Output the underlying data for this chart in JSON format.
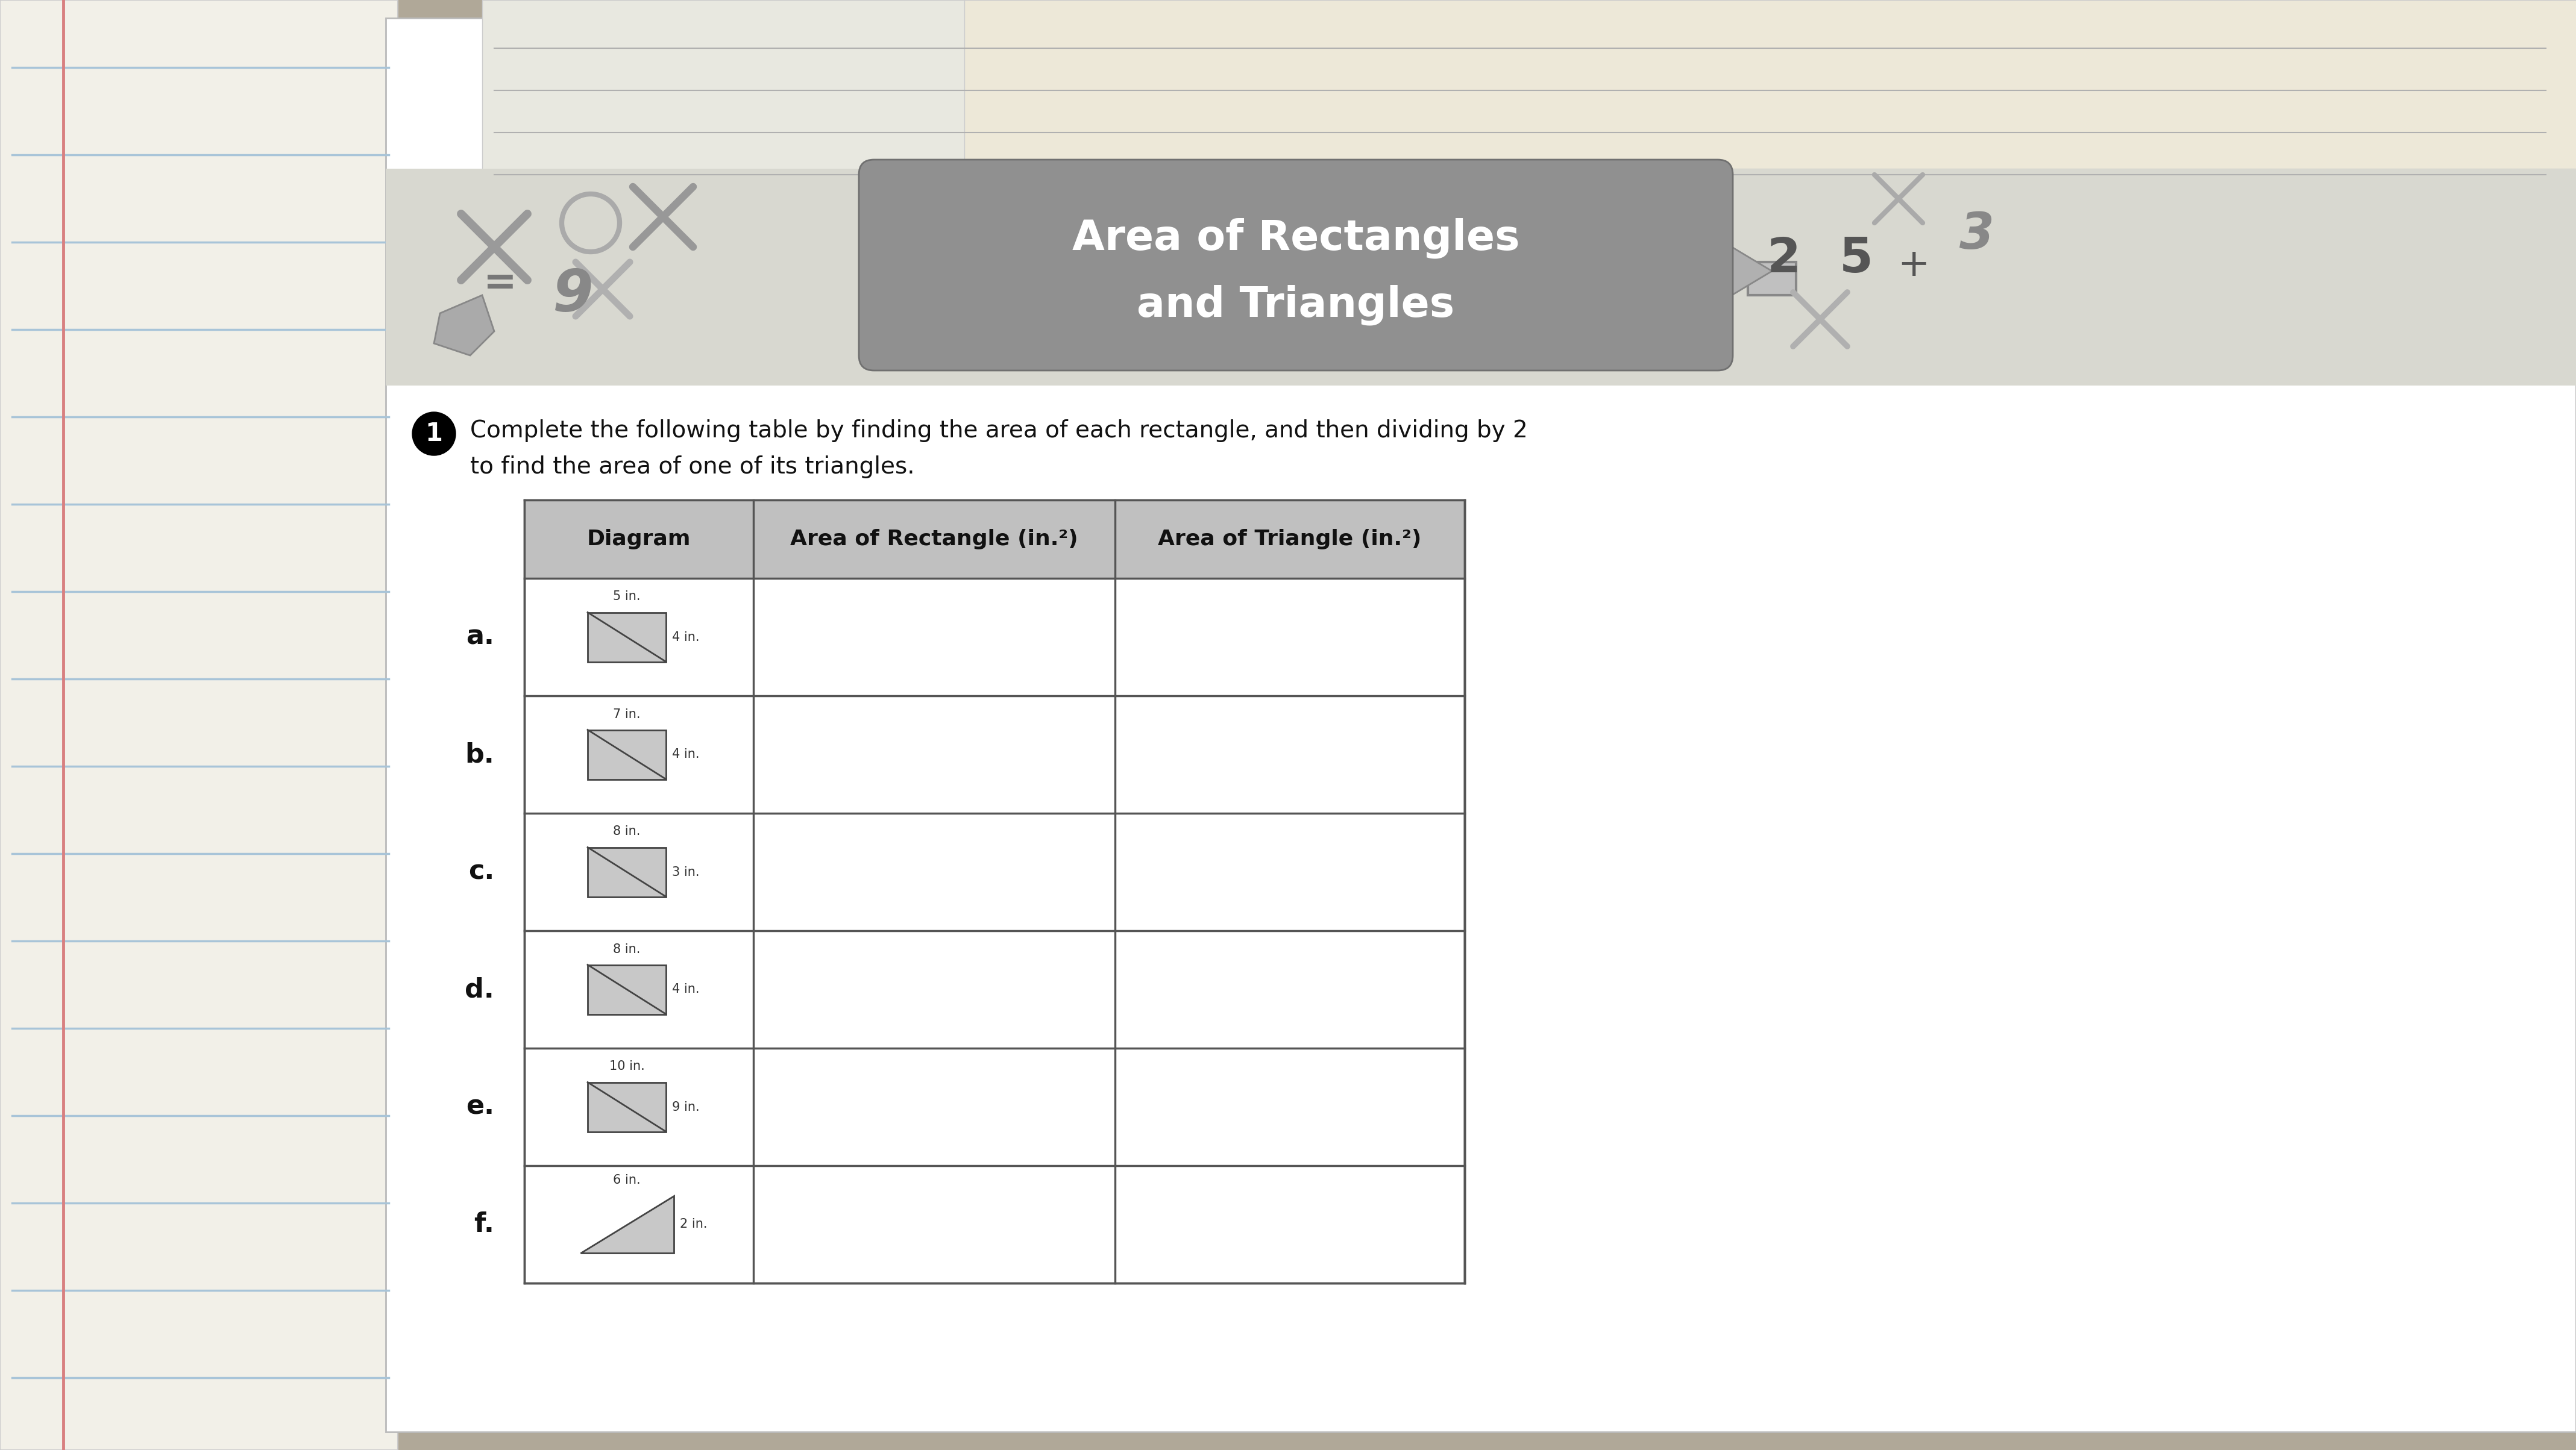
{
  "title_line1": "Area of Rectangles",
  "title_line2": "and Triangles",
  "question_text1": "Complete the following table by finding the area of each rectangle, and then dividing by 2",
  "question_text2": "to find the area of one of its triangles.",
  "col_headers": [
    "Diagram",
    "Area of Rectangle (in.²)",
    "Area of Triangle (in.²)"
  ],
  "rows": [
    "a.",
    "b.",
    "c.",
    "d.",
    "e.",
    "f."
  ],
  "diagram_dims": [
    {
      "top": "5 in.",
      "side": "4 in."
    },
    {
      "top": "7 in.",
      "side": "4 in."
    },
    {
      "top": "8 in.",
      "side": "3 in."
    },
    {
      "top": "8 in.",
      "side": "4 in."
    },
    {
      "top": "10 in.",
      "side": "9 in."
    },
    {
      "top": "6 in.",
      "side": "2 in."
    }
  ],
  "shape_type": [
    "rect_diag",
    "rect_diag",
    "rect_diag",
    "rect_diag",
    "rect_diag",
    "triangle"
  ],
  "bg_color": "#b0a898",
  "paper_color": "#ffffff",
  "lined_paper_color": "#f2f0e8",
  "title_banner_color": "#909090",
  "header_bg_color": "#c0c0c0",
  "table_border_color": "#555555",
  "font_color": "#111111",
  "line_color_blue": "#a8c4d8",
  "margin_color": "#d88080"
}
